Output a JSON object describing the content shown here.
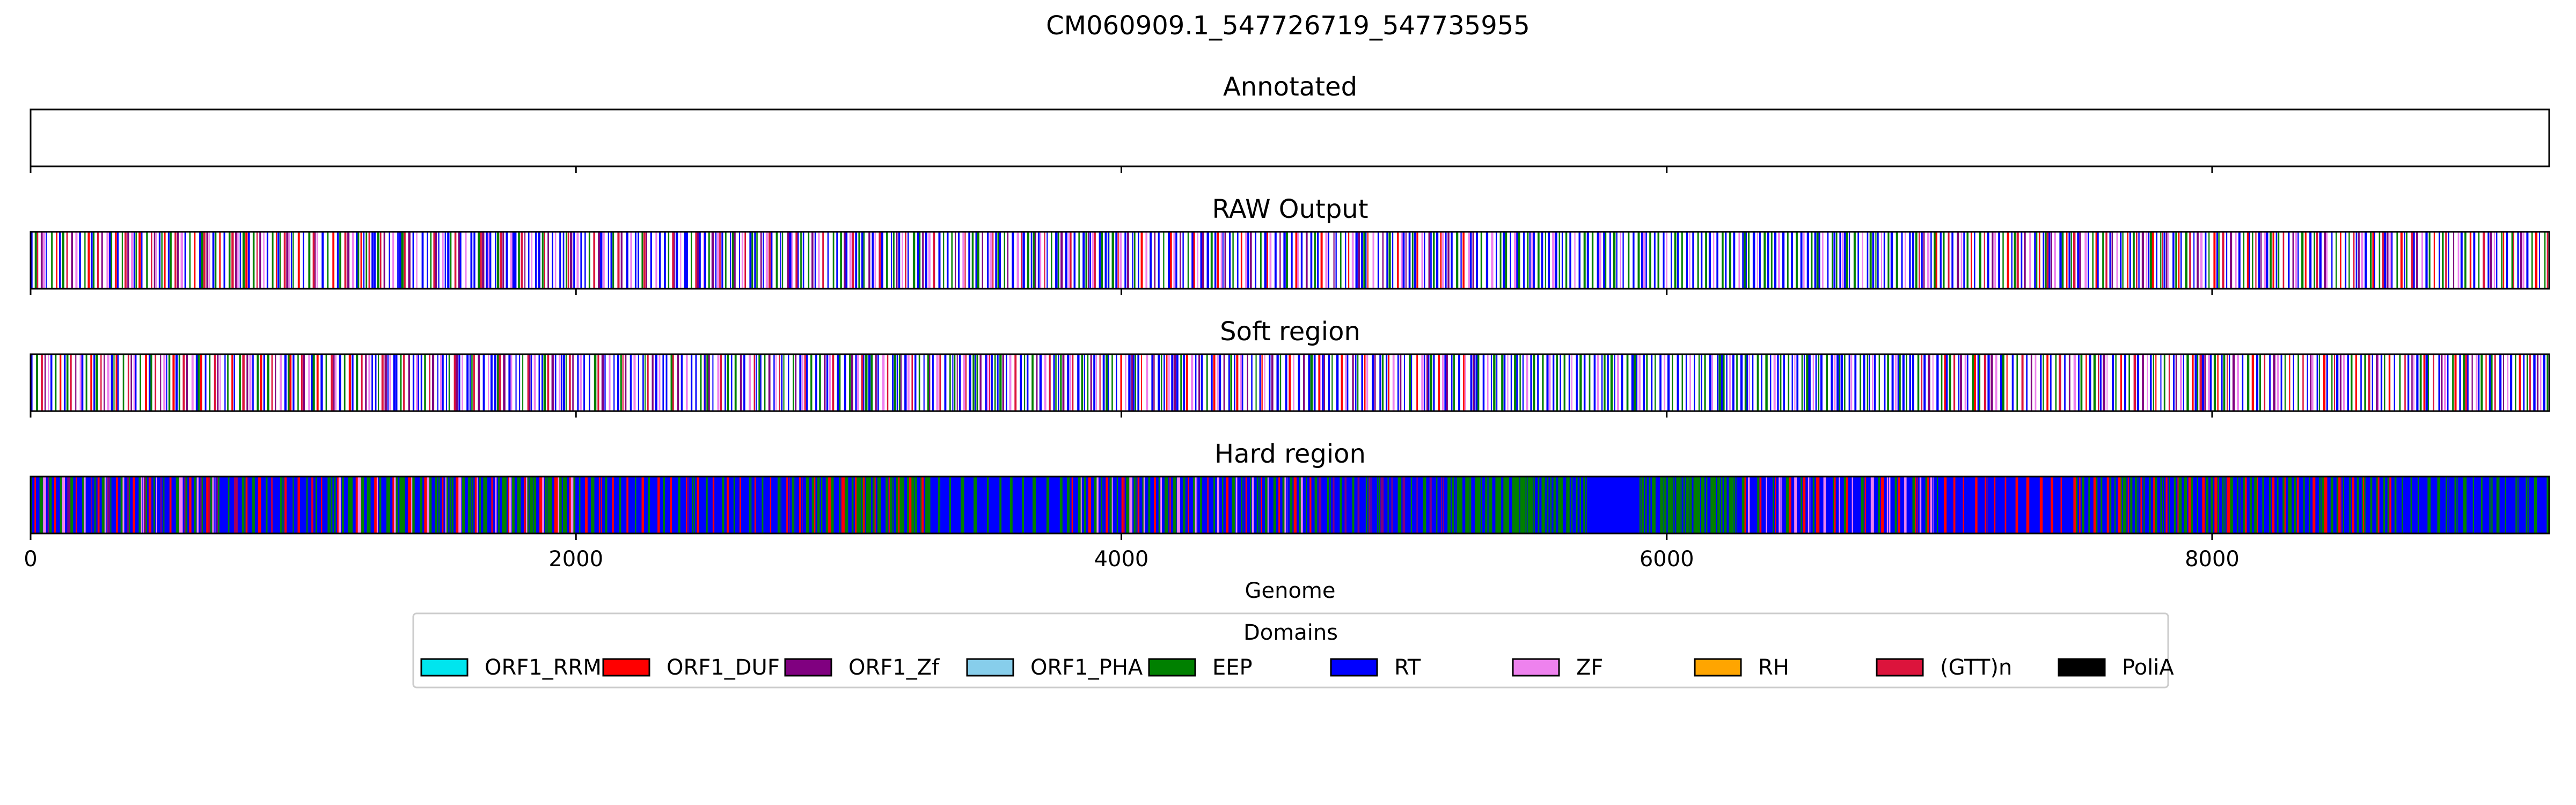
{
  "chart_data": {
    "type": "genome-track",
    "title": "CM060909.1_547726719_547735955",
    "xlabel": "Genome",
    "xlim": [
      0,
      9236
    ],
    "xticks": [
      0,
      2000,
      4000,
      6000,
      8000
    ],
    "xtick_labels": [
      "0",
      "2000",
      "4000",
      "6000",
      "8000"
    ],
    "tracks": [
      {
        "key": "annotated",
        "name": "Annotated",
        "fill": "none",
        "segments": []
      },
      {
        "key": "raw",
        "name": "RAW Output",
        "fill": "lines",
        "segments": [
          {
            "start": 0,
            "end": 1250,
            "pattern": [
              "RT",
              "EEP",
              "(GTT)n",
              "ORF1_Zf",
              "ZF",
              "RT",
              "EEP",
              "ORF1_DUF"
            ]
          },
          {
            "start": 1250,
            "end": 2470,
            "pattern": [
              "RT",
              "RT",
              "EEP",
              "(GTT)n",
              "ORF1_Zf",
              "RT",
              "ZF"
            ]
          },
          {
            "start": 2470,
            "end": 3950,
            "pattern": [
              "RT",
              "EEP",
              "ORF1_Zf",
              "RT",
              "ZF",
              "(GTT)n",
              "RT",
              "EEP"
            ]
          },
          {
            "start": 3950,
            "end": 5300,
            "pattern": [
              "RT",
              "EEP",
              "RT",
              "ORF1_DUF",
              "ZF",
              "RT",
              "ORF1_Zf"
            ]
          },
          {
            "start": 5300,
            "end": 6900,
            "pattern": [
              "RT",
              "EEP",
              "RT",
              "ZF",
              "RT",
              "EEP"
            ]
          },
          {
            "start": 6900,
            "end": 9236,
            "pattern": [
              "RT",
              "EEP",
              "(GTT)n",
              "RT",
              "ORF1_Zf",
              "ZF",
              "RT",
              "EEP",
              "ORF1_DUF"
            ]
          }
        ]
      },
      {
        "key": "soft",
        "name": "Soft region",
        "fill": "lines",
        "segments": [
          {
            "start": 0,
            "end": 1250,
            "pattern": [
              "RT",
              "EEP",
              "(GTT)n",
              "ORF1_Zf",
              "ZF",
              "RT",
              "EEP",
              "ORF1_DUF"
            ]
          },
          {
            "start": 1250,
            "end": 2470,
            "pattern": [
              "RT",
              "RT",
              "EEP",
              "(GTT)n",
              "ORF1_Zf",
              "RT",
              "ZF"
            ]
          },
          {
            "start": 2470,
            "end": 3950,
            "pattern": [
              "RT",
              "EEP",
              "ORF1_Zf",
              "RT",
              "ZF",
              "(GTT)n",
              "RT",
              "EEP"
            ]
          },
          {
            "start": 3950,
            "end": 5300,
            "pattern": [
              "RT",
              "EEP",
              "RT",
              "ORF1_DUF",
              "ZF",
              "RT",
              "ORF1_Zf"
            ]
          },
          {
            "start": 5300,
            "end": 6900,
            "pattern": [
              "RT",
              "EEP",
              "RT",
              "ZF",
              "RT",
              "EEP"
            ]
          },
          {
            "start": 6900,
            "end": 9236,
            "pattern": [
              "RT",
              "EEP",
              "(GTT)n",
              "RT",
              "ORF1_Zf",
              "ZF",
              "RT",
              "EEP",
              "ORF1_DUF"
            ]
          }
        ]
      },
      {
        "key": "hard",
        "name": "Hard region",
        "fill": "dense",
        "segments": [
          {
            "start": 0,
            "end": 700,
            "pattern": [
              "EEP",
              "RT",
              "ORF1_DUF",
              "RT",
              "EEP",
              "ZF",
              "RT",
              "ORF1_Zf"
            ]
          },
          {
            "start": 700,
            "end": 1100,
            "pattern": [
              "RT",
              "RT",
              "EEP",
              "RT",
              "ORF1_DUF"
            ]
          },
          {
            "start": 1100,
            "end": 2000,
            "pattern": [
              "EEP",
              "EEP",
              "RT",
              "ORF1_DUF",
              "ZF",
              "EEP",
              "RT"
            ]
          },
          {
            "start": 2000,
            "end": 2850,
            "pattern": [
              "RT",
              "EEP",
              "RT",
              "RT",
              "ORF1_DUF",
              "RT"
            ]
          },
          {
            "start": 2850,
            "end": 3300,
            "pattern": [
              "EEP",
              "RT",
              "EEP",
              "ORF1_DUF",
              "EEP"
            ]
          },
          {
            "start": 3300,
            "end": 3800,
            "pattern": [
              "RT",
              "RT",
              "RT",
              "EEP",
              "RT"
            ]
          },
          {
            "start": 3800,
            "end": 4700,
            "pattern": [
              "EEP",
              "RT",
              "ORF1_DUF",
              "RT",
              "EEP",
              "ZF",
              "RT"
            ]
          },
          {
            "start": 4700,
            "end": 5200,
            "pattern": [
              "RT",
              "EEP",
              "RT",
              "ORF1_Zf",
              "RT"
            ]
          },
          {
            "start": 5200,
            "end": 5700,
            "pattern": [
              "EEP",
              "EEP",
              "RT",
              "EEP"
            ]
          },
          {
            "start": 5700,
            "end": 5900,
            "pattern": [
              "RT",
              "RT",
              "RT"
            ]
          },
          {
            "start": 5900,
            "end": 6250,
            "pattern": [
              "EEP",
              "EEP",
              "EEP",
              "RT"
            ]
          },
          {
            "start": 6250,
            "end": 7000,
            "pattern": [
              "RT",
              "RT",
              "EEP",
              "ORF1_DUF",
              "RT",
              "ZF"
            ]
          },
          {
            "start": 7000,
            "end": 7500,
            "pattern": [
              "RT",
              "RT",
              "ORF1_DUF",
              "RT"
            ]
          },
          {
            "start": 7500,
            "end": 8100,
            "pattern": [
              "EEP",
              "RT",
              "ORF1_DUF",
              "EEP",
              "RT"
            ]
          },
          {
            "start": 8100,
            "end": 8700,
            "pattern": [
              "RT",
              "EEP",
              "ORF1_DUF",
              "RT",
              "EEP"
            ]
          },
          {
            "start": 8700,
            "end": 9236,
            "pattern": [
              "RT",
              "RT",
              "RT",
              "EEP"
            ]
          }
        ]
      }
    ],
    "legend": {
      "title": "Domains",
      "placement": "bottom-center",
      "items": [
        {
          "label": "ORF1_RRM",
          "color": "#00e5ee"
        },
        {
          "label": "ORF1_DUF",
          "color": "#ff0000"
        },
        {
          "label": "ORF1_Zf",
          "color": "#800080"
        },
        {
          "label": "ORF1_PHA",
          "color": "#87ceeb"
        },
        {
          "label": "EEP",
          "color": "#008000"
        },
        {
          "label": "RT",
          "color": "#0000ff"
        },
        {
          "label": "ZF",
          "color": "#ee82ee"
        },
        {
          "label": "RH",
          "color": "#ffa500"
        },
        {
          "label": "(GTT)n",
          "color": "#dc143c"
        },
        {
          "label": "PoliA",
          "color": "#000000"
        }
      ]
    }
  }
}
